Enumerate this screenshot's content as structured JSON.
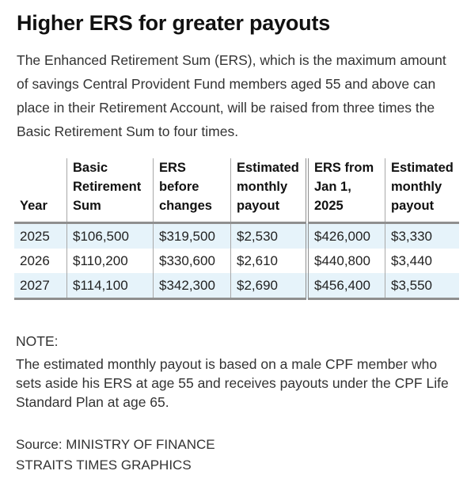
{
  "title": "Higher ERS for greater payouts",
  "intro": "The Enhanced Retirement Sum (ERS), which is the maximum amount of savings Central Provident Fund members aged 55 and above can place in their Retirement Account, will be raised from three times the Basic Retirement Sum to four times.",
  "chart_data": {
    "type": "table",
    "columns": [
      [
        "Year"
      ],
      [
        "Basic",
        "Retirement",
        "Sum"
      ],
      [
        "ERS",
        "before",
        "changes"
      ],
      [
        "Estimated",
        "monthly",
        "payout"
      ],
      [
        "ERS from",
        "Jan 1,",
        "2025"
      ],
      [
        "Estimated",
        "monthly",
        "payout"
      ]
    ],
    "rows": [
      [
        "2025",
        "$106,500",
        "$319,500",
        "$2,530",
        "$426,000",
        "$3,330"
      ],
      [
        "2026",
        "$110,200",
        "$330,600",
        "$2,610",
        "$440,800",
        "$3,440"
      ],
      [
        "2027",
        "$114,100",
        "$342,300",
        "$2,690",
        "$456,400",
        "$3,550"
      ]
    ]
  },
  "note_label": "NOTE:",
  "note_text": "The estimated monthly payout is based on a male CPF member who sets aside his ERS at age 55 and receives payouts under the CPF Life Standard Plan at age 65.",
  "source": "Source: MINISTRY OF FINANCE",
  "credit": "STRAITS TIMES GRAPHICS",
  "colors": {
    "row_shade": "#e6f3fa",
    "rule": "#8f8f8f"
  }
}
